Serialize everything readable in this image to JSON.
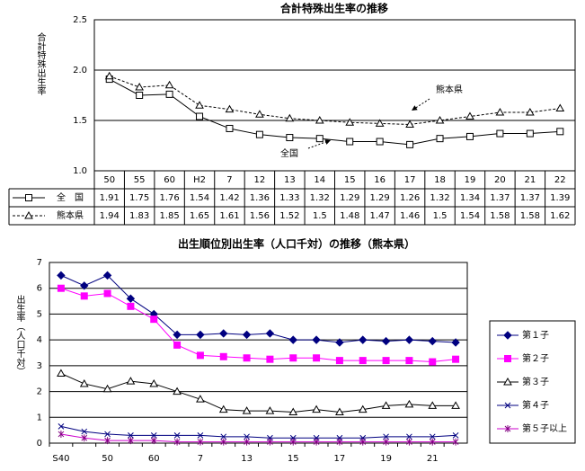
{
  "chart_data": [
    {
      "type": "line",
      "title": "合計特殊出生率の推移",
      "y_label": "合計特殊出生率",
      "categories": [
        "50",
        "55",
        "60",
        "H2",
        "7",
        "12",
        "13",
        "14",
        "15",
        "16",
        "17",
        "18",
        "19",
        "20",
        "21",
        "22"
      ],
      "ylim": [
        1.0,
        2.5
      ],
      "yticks": [
        {
          "value": 1,
          "label": "1.0"
        },
        1.5,
        {
          "value": 2,
          "label": "2.0"
        },
        2.5
      ],
      "grid": true,
      "data_table": true,
      "series": [
        {
          "name": "全　国",
          "color": "#000000",
          "marker": "square",
          "dash": false,
          "values": [
            1.91,
            1.75,
            1.76,
            1.54,
            1.42,
            1.36,
            1.33,
            1.32,
            1.29,
            1.29,
            1.26,
            1.32,
            1.34,
            1.37,
            1.37,
            1.39
          ]
        },
        {
          "name": "熊本県",
          "color": "#000000",
          "marker": "triangle",
          "dash": true,
          "values": [
            1.94,
            1.83,
            1.85,
            1.65,
            1.61,
            1.56,
            1.52,
            1.5,
            1.48,
            1.47,
            1.46,
            1.5,
            1.54,
            1.58,
            1.58,
            1.62
          ]
        }
      ],
      "annotations": [
        {
          "text": "熊本県"
        },
        {
          "text": "全国"
        }
      ]
    },
    {
      "type": "line",
      "title": "出生順位別出生率（人口千対）の推移（熊本県）",
      "y_label": "出生率（人口千対）",
      "categories": [
        "S40",
        null,
        "50",
        null,
        "60",
        null,
        "7",
        null,
        "13",
        null,
        "15",
        null,
        "17",
        null,
        "19",
        null,
        "21",
        null
      ],
      "ylim": [
        0,
        7
      ],
      "yticks": [
        0,
        1,
        2,
        3,
        4,
        5,
        6,
        7
      ],
      "grid": true,
      "legend": "right",
      "series": [
        {
          "name": "第１子",
          "color": "#000080",
          "marker": "diamond",
          "dash": false,
          "values": [
            6.5,
            6.1,
            6.5,
            5.6,
            5.0,
            4.2,
            4.2,
            4.25,
            4.2,
            4.25,
            4.0,
            4.0,
            3.9,
            4.0,
            3.95,
            4.0,
            3.95,
            3.9
          ]
        },
        {
          "name": "第２子",
          "color": "#ff00ff",
          "marker": "fsquare",
          "dash": false,
          "values": [
            6.0,
            5.7,
            5.8,
            5.3,
            4.8,
            3.8,
            3.4,
            3.35,
            3.3,
            3.25,
            3.3,
            3.3,
            3.2,
            3.2,
            3.2,
            3.2,
            3.15,
            3.25
          ]
        },
        {
          "name": "第３子",
          "color": "#000000",
          "marker": "triangle",
          "dash": false,
          "values": [
            2.7,
            2.3,
            2.1,
            2.4,
            2.3,
            2.0,
            1.7,
            1.3,
            1.25,
            1.25,
            1.2,
            1.3,
            1.2,
            1.3,
            1.45,
            1.5,
            1.45,
            1.45
          ]
        },
        {
          "name": "第４子",
          "color": "#000080",
          "marker": "x",
          "dash": false,
          "values": [
            0.65,
            0.45,
            0.35,
            0.3,
            0.3,
            0.3,
            0.3,
            0.25,
            0.25,
            0.2,
            0.2,
            0.2,
            0.2,
            0.2,
            0.25,
            0.25,
            0.25,
            0.3
          ]
        },
        {
          "name": "第５子以上",
          "color": "#cc00cc",
          "marker": "star",
          "dash": false,
          "values": [
            0.35,
            0.2,
            0.1,
            0.1,
            0.1,
            0.05,
            0.05,
            0.05,
            0.05,
            0.05,
            0.05,
            0.05,
            0.05,
            0.05,
            0.05,
            0.05,
            0.05,
            0.05
          ]
        }
      ]
    }
  ]
}
